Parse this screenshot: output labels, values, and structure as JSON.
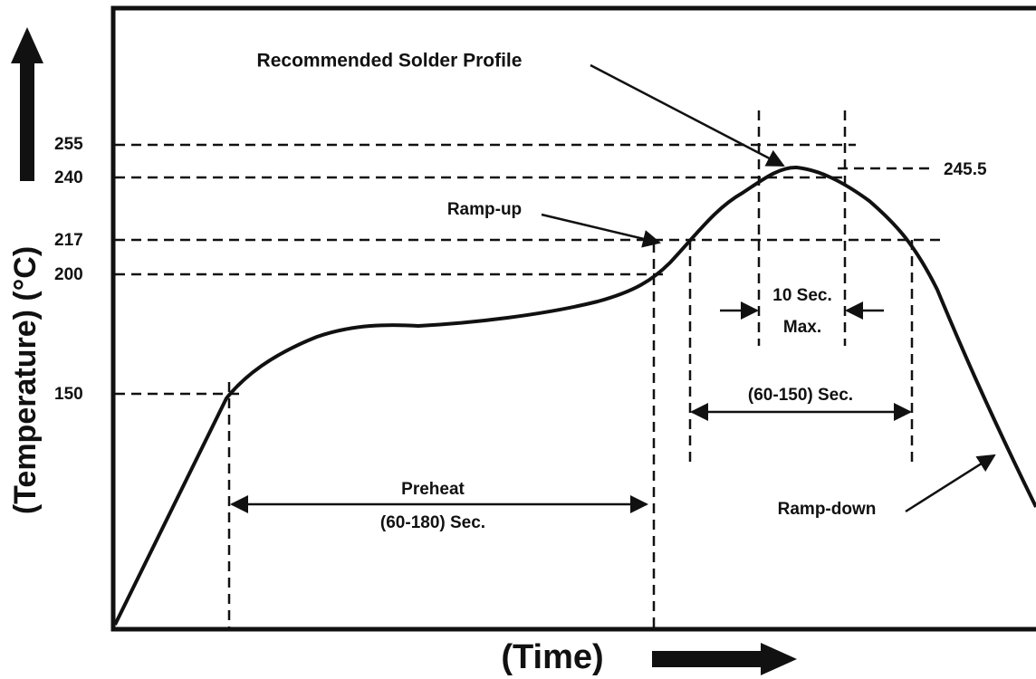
{
  "title": "Recommended Solder Profile",
  "axes": {
    "y_label": "(Temperature) (°C)",
    "x_label": "(Time)"
  },
  "temperature_levels": [
    "255",
    "240",
    "217",
    "200",
    "150"
  ],
  "peak_level": "245.5",
  "annotations": {
    "ramp_up": "Ramp-up",
    "ramp_down": "Ramp-down",
    "peak_time": [
      "10 Sec.",
      "Max."
    ],
    "liquidus_time": "(60-150) Sec.",
    "preheat": [
      "Preheat",
      "(60-180) Sec."
    ]
  }
}
